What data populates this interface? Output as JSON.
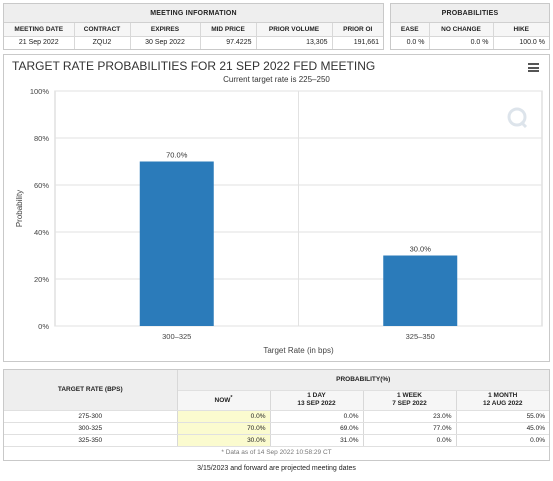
{
  "meeting_info": {
    "title": "MEETING INFORMATION",
    "headers": [
      "MEETING DATE",
      "CONTRACT",
      "EXPIRES",
      "MID PRICE",
      "PRIOR VOLUME",
      "PRIOR OI"
    ],
    "values": [
      "21 Sep 2022",
      "ZQU2",
      "30 Sep 2022",
      "97.4225",
      "13,305",
      "191,661"
    ]
  },
  "probabilities": {
    "title": "PROBABILITIES",
    "headers": [
      "EASE",
      "NO CHANGE",
      "HIKE"
    ],
    "values": [
      "0.0 %",
      "0.0 %",
      "100.0 %"
    ]
  },
  "chart": {
    "title": "TARGET RATE PROBABILITIES FOR 21 SEP 2022 FED MEETING",
    "subtitle": "Current target rate is 225–250"
  },
  "chart_data": {
    "type": "bar",
    "categories": [
      "300–325",
      "325–350"
    ],
    "values": [
      70.0,
      30.0
    ],
    "data_labels": [
      "70.0%",
      "30.0%"
    ],
    "xlabel": "Target Rate (in bps)",
    "ylabel": "Probability",
    "ylim": [
      0,
      100
    ],
    "yticks": [
      0,
      20,
      40,
      60,
      80,
      100
    ],
    "ytick_labels": [
      "0%",
      "20%",
      "40%",
      "60%",
      "80%",
      "100%"
    ],
    "grid": true,
    "bar_color": "#2b7bba"
  },
  "bottom_table": {
    "rate_header": "TARGET RATE (BPS)",
    "prob_header": "PROBABILITY(%)",
    "now_label": "NOW",
    "now_marker": "*",
    "cols": [
      {
        "line1": "1 DAY",
        "line2": "13 SEP 2022"
      },
      {
        "line1": "1 WEEK",
        "line2": "7 SEP 2022"
      },
      {
        "line1": "1 MONTH",
        "line2": "12 AUG 2022"
      }
    ],
    "rows": [
      {
        "rate": "275-300",
        "now": "0.0%",
        "day": "0.0%",
        "week": "23.0%",
        "month": "55.0%"
      },
      {
        "rate": "300-325",
        "now": "70.0%",
        "day": "69.0%",
        "week": "77.0%",
        "month": "45.0%"
      },
      {
        "rate": "325-350",
        "now": "30.0%",
        "day": "31.0%",
        "week": "0.0%",
        "month": "0.0%"
      }
    ],
    "data_note": "* Data as of 14 Sep 2022 10:58:29 CT"
  },
  "footer_note": "3/15/2023 and forward are projected meeting dates"
}
